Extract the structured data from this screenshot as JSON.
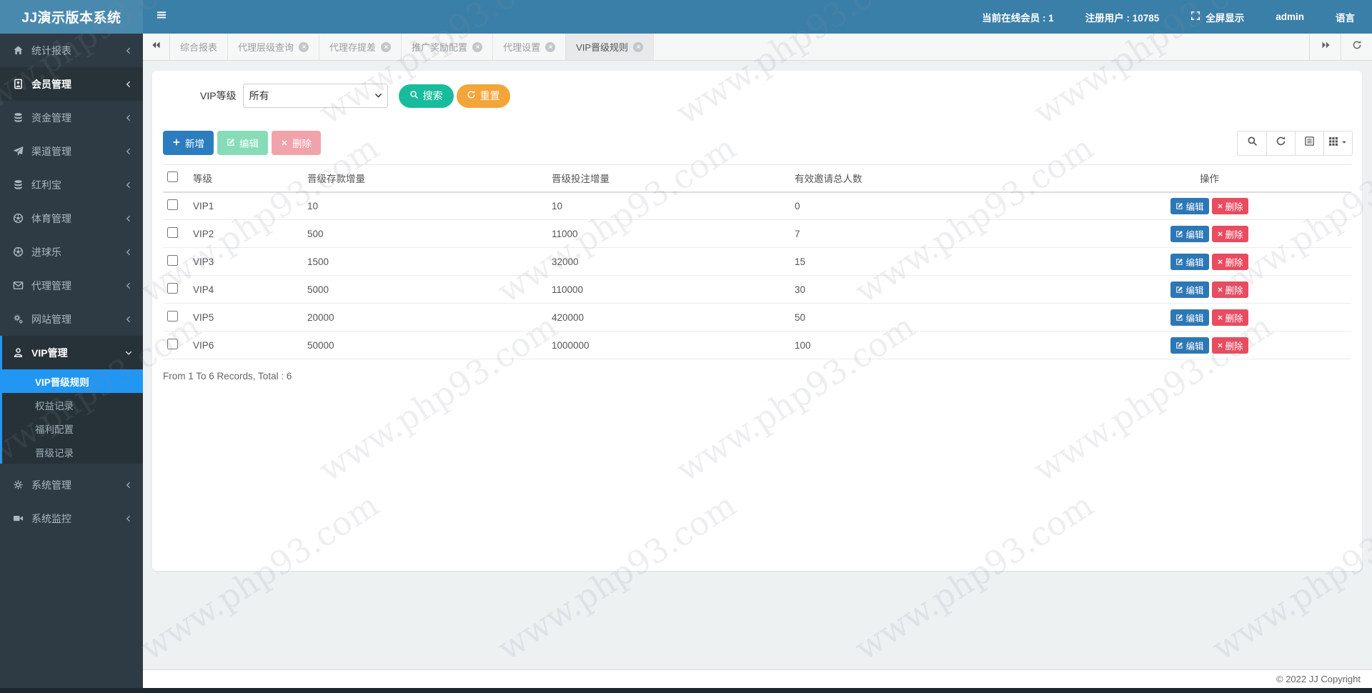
{
  "watermark": "www.php93.com",
  "header": {
    "brand": "JJ演示版本系统",
    "online_label": "当前在线会员 : 1",
    "registered_label": "注册用户 : 10785",
    "fullscreen_label": "全屏显示",
    "username": "admin",
    "language_label": "语言"
  },
  "sidebar": {
    "items": [
      {
        "id": "stats-report",
        "label": "统计报表",
        "icon": "home"
      },
      {
        "id": "member-management",
        "label": "会员管理",
        "icon": "idcard",
        "highlight": true
      },
      {
        "id": "fund-management",
        "label": "资金管理",
        "icon": "db"
      },
      {
        "id": "channel-management",
        "label": "渠道管理",
        "icon": "send"
      },
      {
        "id": "bonus-treasure",
        "label": "红利宝",
        "icon": "db"
      },
      {
        "id": "sports-management",
        "label": "体育管理",
        "icon": "soccer"
      },
      {
        "id": "goal-fun",
        "label": "进球乐",
        "icon": "soccer"
      },
      {
        "id": "agent-management",
        "label": "代理管理",
        "icon": "mail"
      },
      {
        "id": "site-management",
        "label": "网站管理",
        "icon": "gears"
      },
      {
        "id": "vip-management",
        "label": "VIP管理",
        "icon": "person",
        "open": true,
        "children": [
          {
            "id": "vip-promotion-rules",
            "label": "VIP晋级规则",
            "active": true
          },
          {
            "id": "rights-records",
            "label": "权益记录"
          },
          {
            "id": "welfare-config",
            "label": "福利配置"
          },
          {
            "id": "promotion-records",
            "label": "晋级记录"
          }
        ]
      },
      {
        "id": "system-management",
        "label": "系统管理",
        "icon": "gear"
      },
      {
        "id": "system-monitor",
        "label": "系统监控",
        "icon": "video"
      }
    ]
  },
  "tabs": {
    "items": [
      {
        "id": "comprehensive-report",
        "label": "综合报表",
        "closable": false,
        "active": false
      },
      {
        "id": "agent-level-query",
        "label": "代理层级查询",
        "closable": true,
        "active": false
      },
      {
        "id": "agent-deposit-diff",
        "label": "代理存提差",
        "closable": true,
        "active": false
      },
      {
        "id": "promo-reward-config",
        "label": "推广奖励配置",
        "closable": true,
        "active": false
      },
      {
        "id": "agent-settings",
        "label": "代理设置",
        "closable": true,
        "active": false
      },
      {
        "id": "vip-promotion-rules",
        "label": "VIP晋级规则",
        "closable": true,
        "active": true
      }
    ]
  },
  "filter": {
    "label": "VIP等级",
    "select_value": "所有",
    "search_label": "搜索",
    "reset_label": "重置"
  },
  "toolbar": {
    "add_label": "新增",
    "edit_label": "编辑",
    "delete_label": "删除"
  },
  "table": {
    "columns": [
      "等级",
      "晋级存款增量",
      "晋级投注增量",
      "有效邀请总人数",
      "操作"
    ],
    "rows": [
      {
        "level": "VIP1",
        "deposit": "10",
        "bet": "10",
        "invites": "0"
      },
      {
        "level": "VIP2",
        "deposit": "500",
        "bet": "11000",
        "invites": "7"
      },
      {
        "level": "VIP3",
        "deposit": "1500",
        "bet": "32000",
        "invites": "15"
      },
      {
        "level": "VIP4",
        "deposit": "5000",
        "bet": "110000",
        "invites": "30"
      },
      {
        "level": "VIP5",
        "deposit": "20000",
        "bet": "420000",
        "invites": "50"
      },
      {
        "level": "VIP6",
        "deposit": "50000",
        "bet": "1000000",
        "invites": "100"
      }
    ],
    "row_edit_label": "编辑",
    "row_delete_label": "删除",
    "summary": "From 1 To 6 Records, Total : 6"
  },
  "footer": {
    "copyright": "© 2022 JJ Copyright"
  },
  "colors": {
    "header_blue": "#3a7fa8",
    "logo_blue": "#4a89ae",
    "sidebar_dark": "#2f3b44",
    "active_blue": "#2196f3",
    "search_teal": "#18bc9c",
    "reset_orange": "#f3a53a",
    "add_blue": "#2c7dbf",
    "row_edit_blue": "#2d77b5",
    "row_delete_red": "#e94b5f"
  }
}
